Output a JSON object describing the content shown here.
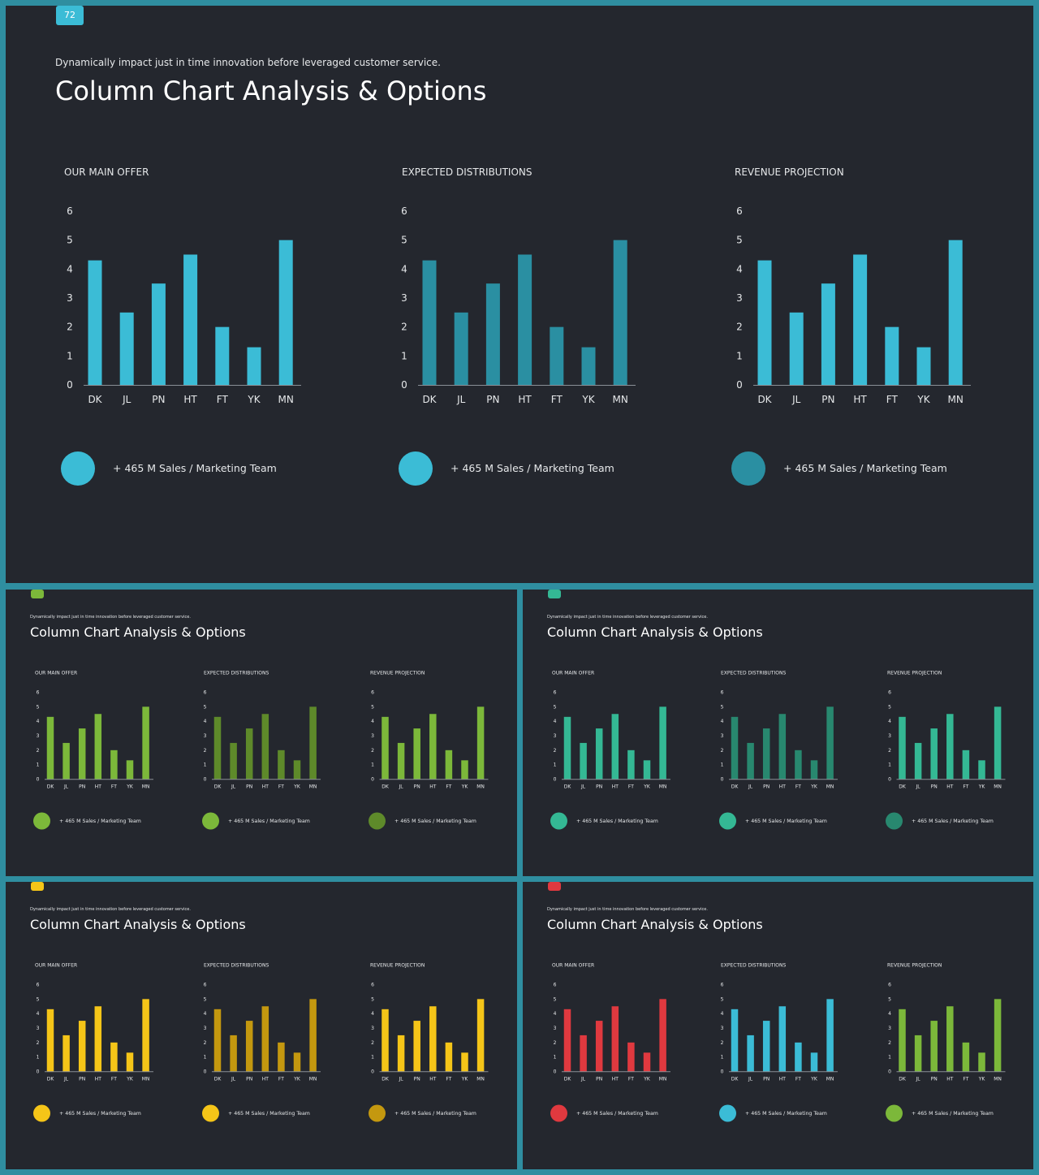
{
  "badge_label": "72",
  "subtitle": "Dynamically impact just in time innovation  before leveraged customer service.",
  "title": "Column Chart Analysis & Options",
  "legend_text": "+ 465 M Sales / Marketing Team",
  "palettes": {
    "blue": {
      "badge": "#3bbcd6",
      "colors": [
        "#3bbcd6",
        "#2a8fa2",
        "#3bbcd6"
      ],
      "circles": [
        "#3bbcd6",
        "#3bbcd6",
        "#2a8fa2"
      ]
    },
    "green": {
      "badge": "#7cb83a",
      "colors": [
        "#7cb83a",
        "#5e8a2a",
        "#7cb83a"
      ],
      "circles": [
        "#7cb83a",
        "#7cb83a",
        "#5e8a2a"
      ]
    },
    "teal": {
      "badge": "#34b894",
      "colors": [
        "#34b894",
        "#28886f",
        "#34b894"
      ],
      "circles": [
        "#34b894",
        "#34b894",
        "#28886f"
      ]
    },
    "yellow": {
      "badge": "#f5c518",
      "colors": [
        "#f5c518",
        "#c4980f",
        "#f5c518"
      ],
      "circles": [
        "#f5c518",
        "#f5c518",
        "#c4980f"
      ]
    },
    "mixed": {
      "badge": "#e0393f",
      "colors": [
        "#e0393f",
        "#3bbcd6",
        "#7cb83a"
      ],
      "circles": [
        "#e0393f",
        "#3bbcd6",
        "#7cb83a"
      ]
    }
  },
  "slides": [
    {
      "id": "main",
      "palette": "blue"
    },
    {
      "id": "s1",
      "palette": "green"
    },
    {
      "id": "s2",
      "palette": "teal"
    },
    {
      "id": "s3",
      "palette": "yellow"
    },
    {
      "id": "s4",
      "palette": "mixed"
    }
  ],
  "chart_data": [
    {
      "type": "bar",
      "title": "OUR MAIN OFFER",
      "categories": [
        "DK",
        "JL",
        "PN",
        "HT",
        "FT",
        "YK",
        "MN"
      ],
      "values": [
        4.3,
        2.5,
        3.5,
        4.5,
        2.0,
        1.3,
        5.0
      ],
      "ylim": [
        0,
        6
      ],
      "yticks": [
        0,
        1,
        2,
        3,
        4,
        5,
        6
      ],
      "grid": false
    },
    {
      "type": "bar",
      "title": "EXPECTED DISTRIBUTIONS",
      "categories": [
        "DK",
        "JL",
        "PN",
        "HT",
        "FT",
        "YK",
        "MN"
      ],
      "values": [
        4.3,
        2.5,
        3.5,
        4.5,
        2.0,
        1.3,
        5.0
      ],
      "ylim": [
        0,
        6
      ],
      "yticks": [
        0,
        1,
        2,
        3,
        4,
        5,
        6
      ],
      "grid": false
    },
    {
      "type": "bar",
      "title": "REVENUE PROJECTION",
      "categories": [
        "DK",
        "JL",
        "PN",
        "HT",
        "FT",
        "YK",
        "MN"
      ],
      "values": [
        4.3,
        2.5,
        3.5,
        4.5,
        2.0,
        1.3,
        5.0
      ],
      "ylim": [
        0,
        6
      ],
      "yticks": [
        0,
        1,
        2,
        3,
        4,
        5,
        6
      ],
      "grid": false
    }
  ]
}
